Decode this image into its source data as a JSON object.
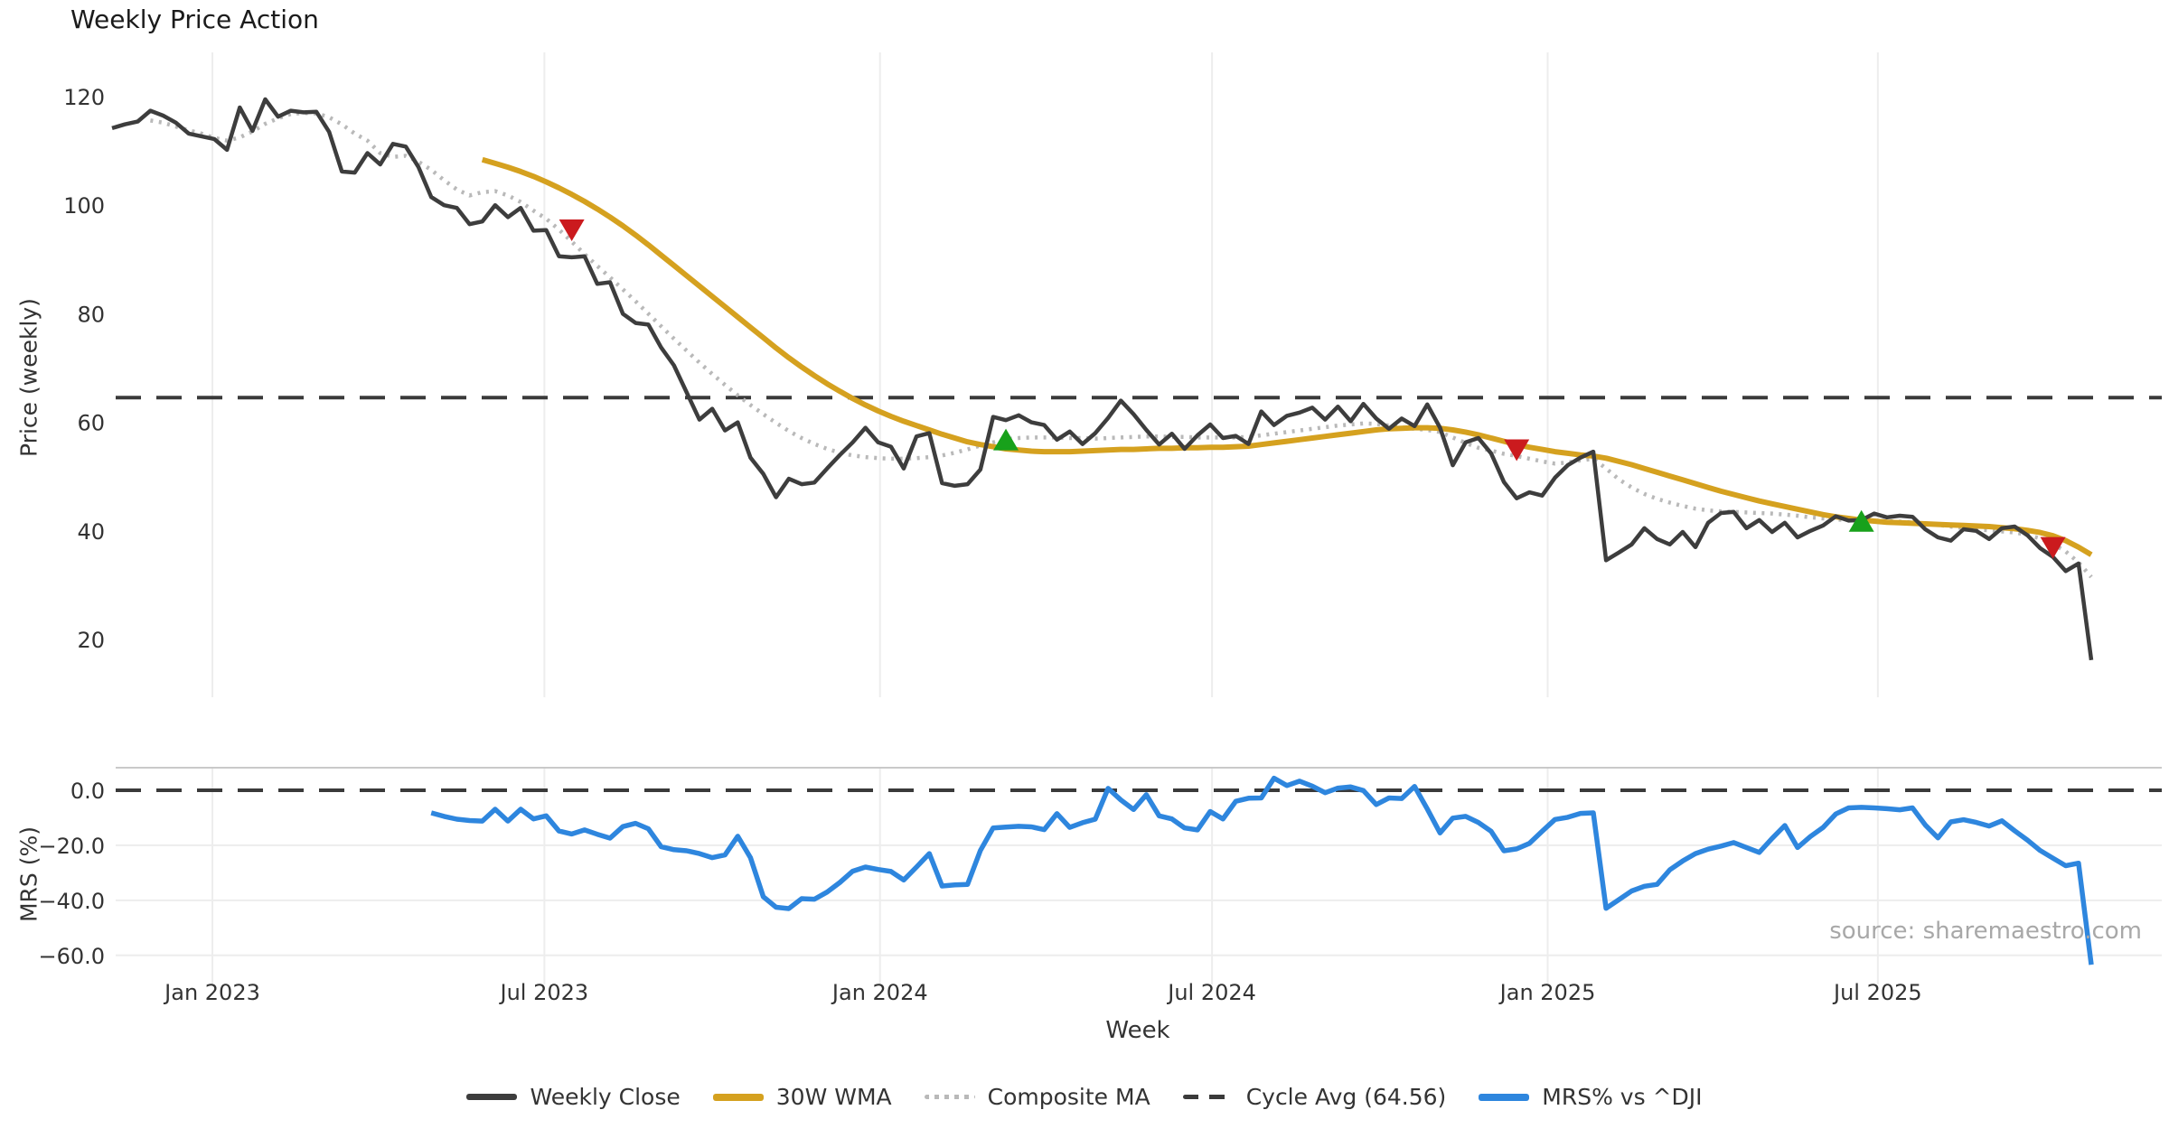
{
  "title": "Weekly Price Action",
  "source_text": "source: sharemaestro.com",
  "colors": {
    "close": "#3d3d3d",
    "wma": "#d5a11f",
    "composite": "#b9b9b9",
    "cycle_dash": "#3a3a3a",
    "mrs": "#2e86de",
    "buy": "#18a11b",
    "sell": "#cb1a1e",
    "grid": "#ededed",
    "panel_spine": "#c9c9c9",
    "tick_text": "#333333"
  },
  "axes": {
    "price": {
      "label": "Price (weekly)",
      "tick_labels": [
        "120",
        "100",
        "80",
        "60",
        "40",
        "20"
      ],
      "tick_values": [
        120,
        100,
        80,
        60,
        40,
        20
      ]
    },
    "mrs": {
      "label": "MRS (%)",
      "tick_labels": [
        "0.0",
        "−20.0",
        "−40.0",
        "−60.0"
      ],
      "tick_values": [
        0,
        -20,
        -40,
        -60
      ]
    },
    "x": {
      "label": "Week",
      "tick_labels": [
        "Jan 2023",
        "Jul 2023",
        "Jan 2024",
        "Jul 2024",
        "Jan 2025",
        "Jul 2025"
      ]
    }
  },
  "legend": {
    "items": [
      {
        "label": "Weekly Close",
        "color": "#3d3d3d",
        "style": "solid"
      },
      {
        "label": "30W WMA",
        "color": "#d5a11f",
        "style": "solid"
      },
      {
        "label": "Composite MA",
        "color": "#b9b9b9",
        "style": "dotted"
      },
      {
        "label": "Cycle Avg (64.56)",
        "color": "#3a3a3a",
        "style": "dashed"
      },
      {
        "label": "MRS% vs ^DJI",
        "color": "#2e86de",
        "style": "solid"
      }
    ]
  },
  "chart_data": {
    "type": "line",
    "freq": "weekly",
    "start_date": "2022-11-07",
    "weeks": 156,
    "x_tick_labels": [
      "Jan 2023",
      "Jul 2023",
      "Jan 2024",
      "Jul 2024",
      "Jan 2025",
      "Jul 2025"
    ],
    "panels": [
      {
        "name": "price",
        "ylabel": "Price (weekly)",
        "ylim": [
          10,
          126
        ],
        "cycle_avg": 64.56,
        "series": [
          {
            "name": "Weekly Close",
            "values": [
              114.2,
              114.9,
              115.4,
              117.4,
              116.5,
              115.2,
              113.2,
              112.7,
              112.2,
              110.2,
              118.0,
              113.7,
              119.5,
              116.3,
              117.4,
              117.1,
              117.2,
              113.5,
              106.2,
              106.0,
              109.6,
              107.5,
              111.3,
              110.8,
              107.0,
              101.5,
              100.0,
              99.5,
              96.5,
              97.0,
              100.0,
              97.8,
              99.5,
              95.3,
              95.4,
              90.6,
              90.4,
              90.6,
              85.5,
              85.8,
              80.0,
              78.3,
              78.0,
              73.8,
              70.5,
              65.5,
              60.5,
              62.5,
              58.5,
              60.0,
              53.5,
              50.5,
              46.2,
              49.6,
              48.6,
              48.9,
              51.5,
              54.0,
              56.3,
              59.0,
              56.3,
              55.5,
              51.5,
              57.4,
              58.0,
              48.8,
              48.3,
              48.6,
              51.3,
              61.0,
              60.4,
              61.3,
              60.0,
              59.5,
              56.8,
              58.3,
              56.0,
              58.0,
              60.8,
              64.0,
              61.5,
              58.6,
              55.9,
              57.9,
              55.1,
              57.6,
              59.6,
              57.1,
              57.5,
              56.0,
              62.0,
              59.5,
              61.2,
              61.8,
              62.7,
              60.5,
              62.9,
              60.2,
              63.4,
              60.7,
              58.8,
              60.7,
              59.3,
              63.3,
              59.0,
              52.1,
              56.3,
              57.1,
              54.3,
              49.0,
              46.0,
              47.1,
              46.5,
              49.8,
              52.1,
              53.5,
              54.6,
              34.6,
              36.0,
              37.5,
              40.5,
              38.5,
              37.5,
              39.8,
              37.0,
              41.5,
              43.3,
              43.5,
              40.5,
              42.0,
              39.8,
              41.5,
              38.8,
              40.0,
              41.0,
              42.7,
              41.9,
              42.0,
              43.2,
              42.5,
              42.8,
              42.6,
              40.3,
              38.8,
              38.2,
              40.3,
              40.0,
              38.5,
              40.5,
              40.8,
              39.2,
              36.8,
              35.2,
              32.6,
              34.0,
              16.2
            ]
          },
          {
            "name": "30W WMA",
            "values": [
              null,
              null,
              null,
              null,
              null,
              null,
              null,
              null,
              null,
              null,
              null,
              null,
              null,
              null,
              null,
              null,
              null,
              null,
              null,
              null,
              null,
              null,
              null,
              null,
              null,
              null,
              null,
              null,
              null,
              108.4,
              107.7,
              107.0,
              106.2,
              105.3,
              104.3,
              103.2,
              102.0,
              100.7,
              99.3,
              97.8,
              96.2,
              94.5,
              92.7,
              90.8,
              88.9,
              87.0,
              85.1,
              83.2,
              81.3,
              79.4,
              77.5,
              75.6,
              73.7,
              71.9,
              70.2,
              68.6,
              67.1,
              65.7,
              64.4,
              63.2,
              62.1,
              61.1,
              60.2,
              59.4,
              58.6,
              57.8,
              57.1,
              56.4,
              55.9,
              55.5,
              55.1,
              54.9,
              54.7,
              54.6,
              54.6,
              54.6,
              54.7,
              54.8,
              54.9,
              55.0,
              55.0,
              55.1,
              55.2,
              55.2,
              55.3,
              55.3,
              55.4,
              55.4,
              55.5,
              55.6,
              55.9,
              56.2,
              56.5,
              56.8,
              57.1,
              57.4,
              57.7,
              58.0,
              58.3,
              58.6,
              58.8,
              58.9,
              59.0,
              59.0,
              58.9,
              58.6,
              58.2,
              57.7,
              57.1,
              56.5,
              55.9,
              55.4,
              55.0,
              54.6,
              54.3,
              54.0,
              53.8,
              53.4,
              52.8,
              52.2,
              51.5,
              50.8,
              50.1,
              49.4,
              48.7,
              48.0,
              47.3,
              46.7,
              46.1,
              45.5,
              45.0,
              44.5,
              44.0,
              43.5,
              43.0,
              42.6,
              42.3,
              42.0,
              41.8,
              41.6,
              41.5,
              41.4,
              41.3,
              41.2,
              41.1,
              41.0,
              40.9,
              40.8,
              40.6,
              40.4,
              40.1,
              39.7,
              39.1,
              38.2,
              37.0,
              35.6
            ]
          },
          {
            "name": "Composite MA",
            "values": [
              null,
              null,
              null,
              115.6,
              115.2,
              114.5,
              113.8,
              113.2,
              112.4,
              111.9,
              112.5,
              113.6,
              115.0,
              116.0,
              116.8,
              117.0,
              116.9,
              116.2,
              114.9,
              113.2,
              111.9,
              109.6,
              108.9,
              109.1,
              108.0,
              106.5,
              104.6,
              102.9,
              101.8,
              102.4,
              102.6,
              101.8,
              100.6,
              99.0,
              97.5,
              95.5,
              93.3,
              91.0,
              88.8,
              86.7,
              84.5,
              82.3,
              80.0,
              77.7,
              75.4,
              73.2,
              71.0,
              68.9,
              66.9,
              65.0,
              63.2,
              61.5,
              59.9,
              58.4,
              57.1,
              56.0,
              55.1,
              54.4,
              53.9,
              53.6,
              53.4,
              53.3,
              53.3,
              53.4,
              53.6,
              53.9,
              54.4,
              55.0,
              55.7,
              56.3,
              56.9,
              57.1,
              57.2,
              57.2,
              57.2,
              57.1,
              57.1,
              57.0,
              57.1,
              57.2,
              57.3,
              57.4,
              57.4,
              57.3,
              57.3,
              57.2,
              57.2,
              57.2,
              57.2,
              57.3,
              57.6,
              57.9,
              58.2,
              58.5,
              58.8,
              59.1,
              59.4,
              59.6,
              59.8,
              59.7,
              59.4,
              59.1,
              58.8,
              58.6,
              58.2,
              57.2,
              56.2,
              55.3,
              54.8,
              54.2,
              53.8,
              53.3,
              52.8,
              52.4,
              52.6,
              53.0,
              53.3,
              51.5,
              49.5,
              48.0,
              46.8,
              45.9,
              45.2,
              44.6,
              44.1,
              43.8,
              43.6,
              43.5,
              43.4,
              43.3,
              43.2,
              43.0,
              42.8,
              42.5,
              42.3,
              42.1,
              42.0,
              41.9,
              41.9,
              41.8,
              41.7,
              41.6,
              41.4,
              41.1,
              40.8,
              40.5,
              40.3,
              40.1,
              39.9,
              39.7,
              39.3,
              38.6,
              37.6,
              36.2,
              34.2,
              31.5
            ]
          }
        ],
        "signals": {
          "buy": [
            {
              "week": 70,
              "value": 56.5
            },
            {
              "week": 137,
              "value": 41.5
            }
          ],
          "sell": [
            {
              "week": 36,
              "value": 95.7
            },
            {
              "week": 110,
              "value": 55.2
            },
            {
              "week": 152,
              "value": 37.2
            }
          ]
        }
      },
      {
        "name": "mrs",
        "ylabel": "MRS (%)",
        "ylim": [
          -70,
          8
        ],
        "zero_line": 0,
        "series": [
          {
            "name": "MRS% vs ^DJI",
            "values": [
              null,
              null,
              null,
              null,
              null,
              null,
              null,
              null,
              null,
              null,
              null,
              null,
              null,
              null,
              null,
              null,
              null,
              null,
              null,
              null,
              null,
              null,
              null,
              null,
              null,
              -8.2,
              -9.5,
              -10.5,
              -11.0,
              -11.2,
              -6.9,
              -11.2,
              -6.9,
              -10.4,
              -9.3,
              -14.8,
              -15.9,
              -14.4,
              -16.0,
              -17.4,
              -13.2,
              -12.0,
              -14.0,
              -20.5,
              -21.6,
              -22.0,
              -23.0,
              -24.5,
              -23.5,
              -16.7,
              -24.5,
              -38.7,
              -42.5,
              -43.0,
              -39.4,
              -39.6,
              -37.0,
              -33.5,
              -29.4,
              -27.9,
              -28.8,
              -29.5,
              -32.6,
              -27.9,
              -23.0,
              -34.8,
              -34.4,
              -34.2,
              -21.9,
              -13.7,
              -13.4,
              -13.1,
              -13.3,
              -14.3,
              -8.5,
              -13.5,
              -11.8,
              -10.5,
              0.7,
              -3.5,
              -7.0,
              -1.6,
              -9.3,
              -10.4,
              -13.7,
              -14.4,
              -7.7,
              -10.4,
              -4.0,
              -2.9,
              -2.8,
              4.4,
              1.7,
              3.3,
              1.5,
              -0.9,
              0.8,
              1.2,
              -0.1,
              -5.2,
              -2.8,
              -3.0,
              1.4,
              -6.8,
              -15.5,
              -10.1,
              -9.5,
              -11.7,
              -14.9,
              -22.0,
              -21.3,
              -19.3,
              -14.9,
              -10.6,
              -9.8,
              -8.4,
              -8.2,
              -42.9,
              -39.8,
              -36.6,
              -34.9,
              -34.2,
              -28.9,
              -25.7,
              -23.0,
              -21.4,
              -20.3,
              -19.0,
              -20.8,
              -22.6,
              -17.5,
              -12.8,
              -20.8,
              -16.8,
              -13.5,
              -8.6,
              -6.4,
              -6.2,
              -6.4,
              -6.7,
              -7.1,
              -6.4,
              -12.6,
              -17.3,
              -11.5,
              -10.7,
              -11.7,
              -13.0,
              -11.1,
              -14.7,
              -18.1,
              -21.9,
              -24.7,
              -27.4,
              -26.5,
              -63.4
            ]
          }
        ]
      }
    ]
  }
}
